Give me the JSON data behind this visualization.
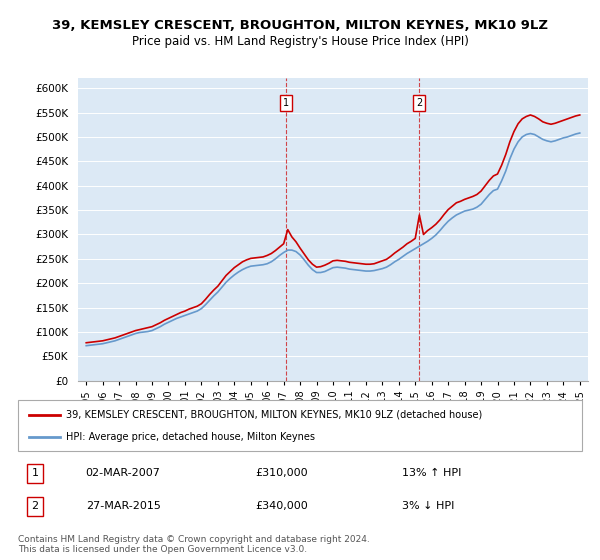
{
  "title": "39, KEMSLEY CRESCENT, BROUGHTON, MILTON KEYNES, MK10 9LZ",
  "subtitle": "Price paid vs. HM Land Registry's House Price Index (HPI)",
  "ylabel_ticks": [
    "£0",
    "£50K",
    "£100K",
    "£150K",
    "£200K",
    "£250K",
    "£300K",
    "£350K",
    "£400K",
    "£450K",
    "£500K",
    "£550K",
    "£600K"
  ],
  "ytick_values": [
    0,
    50000,
    100000,
    150000,
    200000,
    250000,
    300000,
    350000,
    400000,
    450000,
    500000,
    550000,
    600000
  ],
  "ylim": [
    0,
    620000
  ],
  "xlim_start": 1994.5,
  "xlim_end": 2025.5,
  "background_color": "#dce9f5",
  "plot_bg_color": "#dce9f5",
  "marker1_x": 2007.17,
  "marker1_y": 310000,
  "marker1_label": "1",
  "marker1_date": "02-MAR-2007",
  "marker1_price": "£310,000",
  "marker1_hpi": "13% ↑ HPI",
  "marker2_x": 2015.23,
  "marker2_y": 340000,
  "marker2_label": "2",
  "marker2_date": "27-MAR-2015",
  "marker2_price": "£340,000",
  "marker2_hpi": "3% ↓ HPI",
  "legend_line1": "39, KEMSLEY CRESCENT, BROUGHTON, MILTON KEYNES, MK10 9LZ (detached house)",
  "legend_line2": "HPI: Average price, detached house, Milton Keynes",
  "footer": "Contains HM Land Registry data © Crown copyright and database right 2024.\nThis data is licensed under the Open Government Licence v3.0.",
  "line_color_red": "#cc0000",
  "line_color_blue": "#6699cc",
  "hpi_years": [
    1995.0,
    1995.25,
    1995.5,
    1995.75,
    1996.0,
    1996.25,
    1996.5,
    1996.75,
    1997.0,
    1997.25,
    1997.5,
    1997.75,
    1998.0,
    1998.25,
    1998.5,
    1998.75,
    1999.0,
    1999.25,
    1999.5,
    1999.75,
    2000.0,
    2000.25,
    2000.5,
    2000.75,
    2001.0,
    2001.25,
    2001.5,
    2001.75,
    2002.0,
    2002.25,
    2002.5,
    2002.75,
    2003.0,
    2003.25,
    2003.5,
    2003.75,
    2004.0,
    2004.25,
    2004.5,
    2004.75,
    2005.0,
    2005.25,
    2005.5,
    2005.75,
    2006.0,
    2006.25,
    2006.5,
    2006.75,
    2007.0,
    2007.25,
    2007.5,
    2007.75,
    2008.0,
    2008.25,
    2008.5,
    2008.75,
    2009.0,
    2009.25,
    2009.5,
    2009.75,
    2010.0,
    2010.25,
    2010.5,
    2010.75,
    2011.0,
    2011.25,
    2011.5,
    2011.75,
    2012.0,
    2012.25,
    2012.5,
    2012.75,
    2013.0,
    2013.25,
    2013.5,
    2013.75,
    2014.0,
    2014.25,
    2014.5,
    2014.75,
    2015.0,
    2015.25,
    2015.5,
    2015.75,
    2016.0,
    2016.25,
    2016.5,
    2016.75,
    2017.0,
    2017.25,
    2017.5,
    2017.75,
    2018.0,
    2018.25,
    2018.5,
    2018.75,
    2019.0,
    2019.25,
    2019.5,
    2019.75,
    2020.0,
    2020.25,
    2020.5,
    2020.75,
    2021.0,
    2021.25,
    2021.5,
    2021.75,
    2022.0,
    2022.25,
    2022.5,
    2022.75,
    2023.0,
    2023.25,
    2023.5,
    2023.75,
    2024.0,
    2024.25,
    2024.5,
    2024.75,
    2025.0
  ],
  "hpi_values": [
    72000,
    73000,
    74000,
    75000,
    76000,
    78000,
    80000,
    82000,
    85000,
    88000,
    91000,
    94000,
    97000,
    99000,
    100000,
    101000,
    103000,
    107000,
    111000,
    116000,
    120000,
    124000,
    128000,
    131000,
    134000,
    137000,
    140000,
    143000,
    148000,
    156000,
    165000,
    174000,
    182000,
    192000,
    202000,
    210000,
    217000,
    223000,
    228000,
    232000,
    235000,
    236000,
    237000,
    238000,
    240000,
    244000,
    250000,
    257000,
    263000,
    268000,
    268000,
    265000,
    258000,
    248000,
    237000,
    228000,
    222000,
    222000,
    224000,
    228000,
    232000,
    233000,
    232000,
    231000,
    229000,
    228000,
    227000,
    226000,
    225000,
    225000,
    226000,
    228000,
    230000,
    233000,
    238000,
    244000,
    249000,
    255000,
    261000,
    266000,
    271000,
    276000,
    281000,
    286000,
    292000,
    299000,
    308000,
    318000,
    327000,
    334000,
    340000,
    344000,
    348000,
    350000,
    352000,
    356000,
    362000,
    372000,
    382000,
    390000,
    393000,
    410000,
    430000,
    455000,
    475000,
    490000,
    500000,
    505000,
    507000,
    505000,
    500000,
    495000,
    492000,
    490000,
    492000,
    495000,
    498000,
    500000,
    503000,
    506000,
    508000
  ],
  "price_years": [
    1995.0,
    1995.25,
    1995.5,
    1995.75,
    1996.0,
    1996.25,
    1996.5,
    1996.75,
    1997.0,
    1997.25,
    1997.5,
    1997.75,
    1998.0,
    1998.25,
    1998.5,
    1998.75,
    1999.0,
    1999.25,
    1999.5,
    1999.75,
    2000.0,
    2000.25,
    2000.5,
    2000.75,
    2001.0,
    2001.25,
    2001.5,
    2001.75,
    2002.0,
    2002.25,
    2002.5,
    2002.75,
    2003.0,
    2003.25,
    2003.5,
    2003.75,
    2004.0,
    2004.25,
    2004.5,
    2004.75,
    2005.0,
    2005.25,
    2005.5,
    2005.75,
    2006.0,
    2006.25,
    2006.5,
    2006.75,
    2007.0,
    2007.25,
    2007.5,
    2007.75,
    2008.0,
    2008.25,
    2008.5,
    2008.75,
    2009.0,
    2009.25,
    2009.5,
    2009.75,
    2010.0,
    2010.25,
    2010.5,
    2010.75,
    2011.0,
    2011.25,
    2011.5,
    2011.75,
    2012.0,
    2012.25,
    2012.5,
    2012.75,
    2013.0,
    2013.25,
    2013.5,
    2013.75,
    2014.0,
    2014.25,
    2014.5,
    2014.75,
    2015.0,
    2015.25,
    2015.5,
    2015.75,
    2016.0,
    2016.25,
    2016.5,
    2016.75,
    2017.0,
    2017.25,
    2017.5,
    2017.75,
    2018.0,
    2018.25,
    2018.5,
    2018.75,
    2019.0,
    2019.25,
    2019.5,
    2019.75,
    2020.0,
    2020.25,
    2020.5,
    2020.75,
    2021.0,
    2021.25,
    2021.5,
    2021.75,
    2022.0,
    2022.25,
    2022.5,
    2022.75,
    2023.0,
    2023.25,
    2023.5,
    2023.75,
    2024.0,
    2024.25,
    2024.5,
    2024.75,
    2025.0
  ],
  "price_values": [
    78000,
    79000,
    80000,
    81000,
    82000,
    84000,
    86000,
    88000,
    91000,
    94000,
    97000,
    100000,
    103000,
    105000,
    107000,
    109000,
    111000,
    115000,
    119000,
    124000,
    128000,
    132000,
    136000,
    140000,
    143000,
    147000,
    150000,
    153000,
    158000,
    167000,
    177000,
    186000,
    194000,
    205000,
    216000,
    224000,
    232000,
    238000,
    244000,
    248000,
    251000,
    252000,
    253000,
    254000,
    257000,
    261000,
    267000,
    274000,
    281000,
    310000,
    295000,
    285000,
    272000,
    260000,
    248000,
    239000,
    233000,
    234000,
    237000,
    241000,
    246000,
    247000,
    246000,
    245000,
    243000,
    242000,
    241000,
    240000,
    239000,
    239000,
    240000,
    243000,
    246000,
    249000,
    255000,
    262000,
    268000,
    274000,
    281000,
    286000,
    292000,
    340000,
    300000,
    308000,
    314000,
    321000,
    330000,
    341000,
    351000,
    358000,
    365000,
    368000,
    372000,
    375000,
    378000,
    382000,
    389000,
    400000,
    411000,
    420000,
    424000,
    442000,
    464000,
    490000,
    511000,
    527000,
    537000,
    542000,
    545000,
    542000,
    537000,
    531000,
    528000,
    526000,
    528000,
    531000,
    534000,
    537000,
    540000,
    543000,
    545000
  ]
}
